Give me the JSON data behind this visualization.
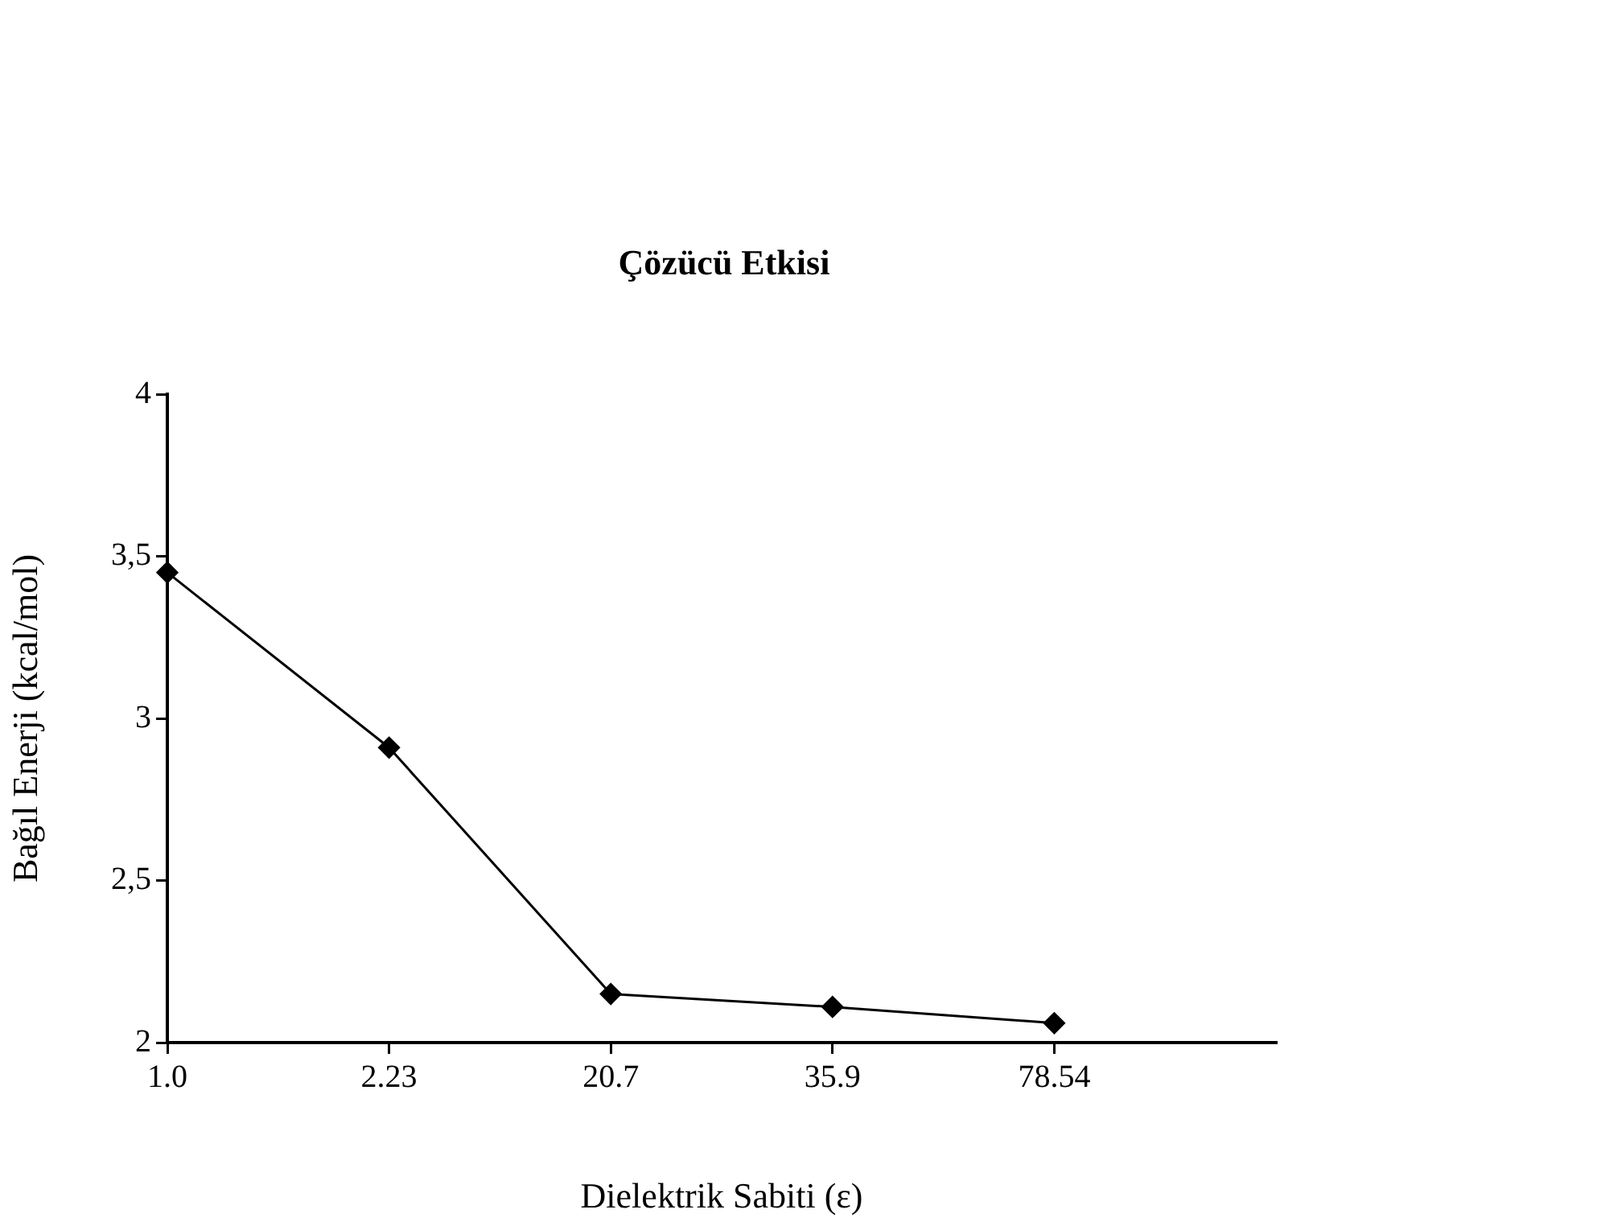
{
  "chart_data": {
    "type": "line",
    "title": "Çözücü Etkisi",
    "xlabel": "Dielektrik Sabiti (ε)",
    "ylabel": "Bağıl Enerji (kcal/mol)",
    "categories": [
      "1.0",
      "2.23",
      "20.7",
      "35.9",
      "78.54",
      null
    ],
    "series": [
      {
        "color": "#000000",
        "values": [
          3.45,
          2.91,
          2.15,
          2.11,
          2.06,
          null
        ]
      }
    ],
    "ylim": [
      2,
      4
    ],
    "yticks": [
      2,
      {
        "value": 2.5,
        "label": "2,5"
      },
      3,
      {
        "value": 3.5,
        "label": "3,5"
      },
      4
    ],
    "grid": false,
    "legend": false,
    "marker": "diamond",
    "line_style": "solid"
  }
}
